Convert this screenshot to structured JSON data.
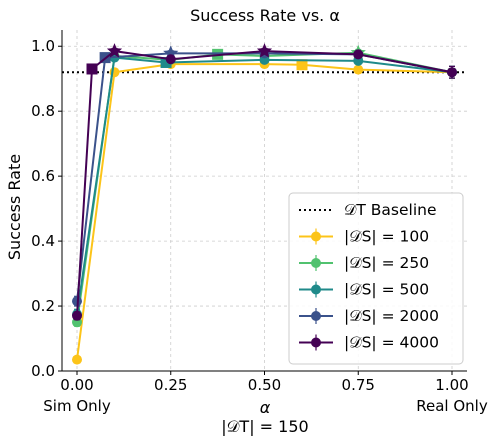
{
  "chart_data": {
    "type": "line",
    "title": "Success Rate vs. α",
    "xlabel": "α",
    "xlabel_sub": "|𝒟T| = 150",
    "ylabel": "Success Rate",
    "xlim": [
      -0.04,
      1.04
    ],
    "ylim": [
      0.0,
      1.05
    ],
    "xticks": [
      {
        "value": 0.0,
        "label": "0.00",
        "sublabel": "Sim Only"
      },
      {
        "value": 0.25,
        "label": "0.25",
        "sublabel": ""
      },
      {
        "value": 0.5,
        "label": "0.50",
        "sublabel": ""
      },
      {
        "value": 0.75,
        "label": "0.75",
        "sublabel": ""
      },
      {
        "value": 1.0,
        "label": "1.00",
        "sublabel": "Real Only"
      }
    ],
    "yticks": [
      {
        "value": 0.0,
        "label": "0.0"
      },
      {
        "value": 0.2,
        "label": "0.2"
      },
      {
        "value": 0.4,
        "label": "0.4"
      },
      {
        "value": 0.6,
        "label": "0.6"
      },
      {
        "value": 0.8,
        "label": "0.8"
      },
      {
        "value": 1.0,
        "label": "1.0"
      }
    ],
    "grid": true,
    "legend_position": "lower-right",
    "baseline": {
      "name": "𝒟T Baseline",
      "value": 0.92,
      "color": "#000000"
    },
    "series": [
      {
        "name": "|𝒟S| = 100",
        "color": "#fcc419",
        "x": [
          0.0,
          0.1,
          0.25,
          0.5,
          0.6,
          0.75,
          1.0
        ],
        "y": [
          0.035,
          0.92,
          0.945,
          0.945,
          0.943,
          0.928,
          0.92
        ],
        "err": [
          0.008,
          0.01,
          0.01,
          0.01,
          0.01,
          0.01,
          0.018
        ],
        "markers": [
          "circle",
          "circle",
          "circle",
          "circle",
          "square",
          "circle",
          "circle"
        ]
      },
      {
        "name": "|𝒟S| = 250",
        "color": "#51c26f",
        "x": [
          0.0,
          0.1,
          0.25,
          0.375,
          0.5,
          0.75,
          1.0
        ],
        "y": [
          0.15,
          0.97,
          0.958,
          0.975,
          0.97,
          0.98,
          0.92
        ],
        "err": [
          0.012,
          0.008,
          0.008,
          0.008,
          0.008,
          0.01,
          0.018
        ],
        "markers": [
          "circle",
          "circle",
          "circle",
          "square",
          "circle",
          "star",
          "circle"
        ]
      },
      {
        "name": "|𝒟S| = 500",
        "color": "#1f8a8a",
        "x": [
          0.0,
          0.1,
          0.2375,
          0.5,
          0.75,
          1.0
        ],
        "y": [
          0.175,
          0.965,
          0.95,
          0.958,
          0.955,
          0.92
        ],
        "err": [
          0.015,
          0.008,
          0.008,
          0.008,
          0.008,
          0.018
        ],
        "markers": [
          "circle",
          "circle",
          "square",
          "circle",
          "circle",
          "circle"
        ]
      },
      {
        "name": "|𝒟S| = 2000",
        "color": "#3b528b",
        "x": [
          0.0,
          0.075,
          0.25,
          0.5,
          0.75,
          1.0
        ],
        "y": [
          0.215,
          0.965,
          0.978,
          0.978,
          0.975,
          0.92
        ],
        "err": [
          0.015,
          0.008,
          0.008,
          0.008,
          0.008,
          0.018
        ],
        "markers": [
          "circle",
          "square",
          "star",
          "circle",
          "circle",
          "circle"
        ]
      },
      {
        "name": "|𝒟S| = 4000",
        "color": "#440154",
        "x": [
          0.0,
          0.04,
          0.1,
          0.25,
          0.5,
          0.75,
          1.0
        ],
        "y": [
          0.17,
          0.93,
          0.985,
          0.96,
          0.985,
          0.975,
          0.92
        ],
        "err": [
          0.012,
          0.008,
          0.008,
          0.008,
          0.008,
          0.008,
          0.018
        ],
        "markers": [
          "circle",
          "square",
          "star",
          "circle",
          "star",
          "circle",
          "circle"
        ]
      }
    ]
  }
}
